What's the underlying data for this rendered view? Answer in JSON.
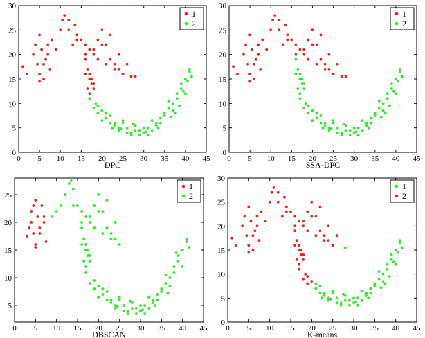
{
  "chart_data": [
    {
      "type": "scatter",
      "xlabel": "DPC",
      "xlim": [
        0,
        45
      ],
      "ylim": [
        0,
        30
      ],
      "xticks": [
        0,
        5,
        10,
        15,
        20,
        25,
        30,
        35,
        40,
        45
      ],
      "yticks": [
        0,
        5,
        10,
        15,
        20,
        25,
        30
      ],
      "legend": "top-right",
      "series": [
        {
          "name": "1",
          "color": "#e82020",
          "x": [
            1,
            2,
            3.5,
            4,
            4.5,
            5,
            5,
            5.5,
            6,
            6.5,
            7,
            7.5,
            5,
            6,
            7,
            8,
            9,
            10,
            10.5,
            11,
            12,
            13,
            13.5,
            14,
            15,
            16,
            17,
            18,
            19,
            20,
            21,
            22,
            23,
            24,
            25,
            26,
            27,
            28,
            12,
            14,
            16,
            18,
            20,
            22,
            24,
            19,
            21,
            23,
            25,
            16,
            16.5,
            17,
            17.5,
            18,
            16.5,
            17,
            17.5,
            18,
            16,
            17
          ],
          "y": [
            17.5,
            16,
            20,
            22,
            18,
            24,
            16,
            21,
            15,
            19,
            22,
            17,
            14.5,
            18,
            20,
            23,
            21,
            25,
            27,
            28,
            27,
            22,
            26,
            24,
            23,
            22,
            21,
            20,
            23,
            25,
            22,
            19,
            18,
            17,
            16,
            18,
            15.5,
            15.5,
            25,
            23,
            20,
            21,
            22,
            24,
            20,
            19,
            18,
            17,
            16,
            19,
            17,
            16,
            15,
            14,
            13,
            12,
            14,
            13,
            16,
            15
          ]
        },
        {
          "name": "2",
          "color": "#22ee22",
          "x": [
            17,
            18,
            19,
            20,
            21,
            22,
            23,
            24,
            25,
            26,
            27,
            28,
            29,
            30,
            31,
            32,
            33,
            34,
            35,
            36,
            37,
            38,
            39,
            40,
            41,
            20,
            22,
            24,
            26,
            28,
            30,
            32,
            34,
            36,
            38,
            40,
            19,
            21,
            23,
            25,
            27,
            29,
            31,
            33,
            35,
            37,
            39,
            41,
            18.5,
            24.5,
            30.5,
            36.5,
            41.5,
            22.5,
            27.5,
            33.5,
            38.5,
            40.5,
            39.5,
            37.5
          ],
          "y": [
            11,
            9,
            8,
            8.5,
            7,
            6,
            5.5,
            5,
            6,
            5,
            4,
            4.5,
            3.5,
            4,
            5,
            4.5,
            6,
            7,
            8,
            9,
            10,
            12,
            13,
            15,
            16.5,
            6.5,
            7.5,
            4.5,
            4,
            5.5,
            5,
            6.5,
            6,
            10.5,
            11,
            12,
            9.5,
            8,
            6,
            6.5,
            3.5,
            4.5,
            3.5,
            5.5,
            7.5,
            8.5,
            14,
            17,
            10,
            4.8,
            4.2,
            7.2,
            15.5,
            5,
            5.8,
            5,
            9.5,
            14.5,
            12.5,
            8
          ]
        }
      ]
    },
    {
      "type": "scatter",
      "xlabel": "SSA-DPC",
      "xlim": [
        0,
        45
      ],
      "ylim": [
        0,
        30
      ],
      "xticks": [
        0,
        5,
        10,
        15,
        20,
        25,
        30,
        35,
        40,
        45
      ],
      "yticks": [
        0,
        5,
        10,
        15,
        20,
        25,
        30
      ],
      "legend": "top-right",
      "series": [
        {
          "name": "1",
          "color": "#e82020",
          "x": [
            1,
            2,
            3.5,
            4,
            4.5,
            5,
            5,
            5.5,
            6,
            6.5,
            7,
            7.5,
            5,
            6,
            7,
            8,
            9,
            10,
            10.5,
            11,
            12,
            13,
            13.5,
            14,
            15,
            16,
            17,
            18,
            19,
            20,
            21,
            22,
            23,
            24,
            25,
            26,
            27,
            28,
            12,
            14,
            16,
            18,
            20,
            22,
            24,
            19,
            21,
            23,
            25
          ],
          "y": [
            17.5,
            16,
            20,
            22,
            18,
            24,
            16,
            21,
            15,
            19,
            22,
            17,
            14.5,
            18,
            20,
            23,
            21,
            25,
            27,
            28,
            27,
            22,
            26,
            24,
            23,
            22,
            21,
            20,
            23,
            25,
            22,
            19,
            18,
            17,
            16,
            18,
            15.5,
            15.5,
            25,
            23,
            20,
            21,
            22,
            24,
            20,
            19,
            18,
            17,
            16
          ]
        },
        {
          "name": "2",
          "color": "#22ee22",
          "x": [
            16,
            16.5,
            17,
            17.5,
            18,
            16.5,
            17,
            17.5,
            18,
            16,
            17,
            17,
            18,
            19,
            20,
            21,
            22,
            23,
            24,
            25,
            26,
            27,
            28,
            29,
            30,
            31,
            32,
            33,
            34,
            35,
            36,
            37,
            38,
            39,
            40,
            41,
            20,
            22,
            24,
            26,
            28,
            30,
            32,
            34,
            36,
            38,
            40,
            19,
            21,
            23,
            25,
            27,
            29,
            31,
            33,
            35,
            37,
            39,
            41,
            18.5,
            24.5,
            30.5,
            36.5,
            41.5,
            22.5,
            27.5,
            33.5,
            38.5,
            40.5,
            39.5,
            37.5
          ],
          "y": [
            19,
            17,
            16,
            15,
            14,
            13,
            12,
            14,
            13,
            16,
            15,
            11,
            9,
            8,
            8.5,
            7,
            6,
            5.5,
            5,
            6,
            5,
            4,
            4.5,
            3.5,
            4,
            5,
            4.5,
            6,
            7,
            8,
            9,
            10,
            12,
            13,
            15,
            16.5,
            6.5,
            7.5,
            4.5,
            4,
            5.5,
            5,
            6.5,
            6,
            10.5,
            11,
            12,
            9.5,
            8,
            6,
            6.5,
            3.5,
            4.5,
            3.5,
            5.5,
            7.5,
            8.5,
            14,
            17,
            10,
            4.8,
            4.2,
            7.2,
            15.5,
            5,
            5.8,
            5,
            9.5,
            14.5,
            12.5,
            8
          ]
        }
      ]
    },
    {
      "type": "scatter",
      "xlabel": "DBSCAN",
      "xlim": [
        0,
        45
      ],
      "ylim": [
        2,
        28
      ],
      "xticks": [
        0,
        5,
        10,
        15,
        20,
        25,
        30,
        35,
        40,
        45
      ],
      "yticks": [
        5,
        10,
        15,
        20,
        25
      ],
      "legend": "top-right",
      "series": [
        {
          "name": "1",
          "color": "#e82020",
          "x": [
            3,
            3.5,
            4,
            4,
            4.5,
            5,
            5,
            5.5,
            6,
            6.5,
            7,
            7.5,
            5,
            6,
            7,
            4.5
          ],
          "y": [
            17.5,
            19,
            20,
            22,
            18,
            24,
            16,
            21,
            19,
            23,
            20,
            16.5,
            15.5,
            18,
            21,
            23
          ]
        },
        {
          "name": "2",
          "color": "#22ee22",
          "x": [
            9,
            10,
            11,
            12,
            13,
            13.5,
            14,
            15,
            16,
            17,
            18,
            19,
            20,
            21,
            22,
            23,
            24,
            25,
            12,
            14,
            16,
            18,
            20,
            22,
            24,
            19,
            21,
            23,
            16,
            16.5,
            17,
            17.5,
            18,
            16.5,
            17,
            17.5,
            18,
            16,
            17,
            17,
            18,
            19,
            20,
            21,
            22,
            23,
            24,
            25,
            26,
            27,
            28,
            29,
            30,
            31,
            32,
            33,
            34,
            35,
            36,
            37,
            38,
            39,
            40,
            41,
            20,
            22,
            24,
            26,
            28,
            30,
            32,
            34,
            36,
            38,
            40,
            19,
            21,
            23,
            25,
            27,
            29,
            31,
            33,
            35,
            37,
            39,
            41,
            24.5,
            30.5,
            36.5,
            41.5,
            27.5,
            33.5,
            38.5
          ],
          "y": [
            21,
            22,
            23,
            25,
            27,
            27.5,
            26,
            23,
            22,
            21,
            20,
            23,
            25,
            22,
            19,
            18,
            17,
            16,
            25,
            23,
            20,
            21,
            22,
            24,
            20,
            19,
            18,
            17,
            19,
            17,
            16,
            15,
            14,
            13,
            12,
            14,
            13,
            16,
            15,
            11,
            9,
            8,
            8.5,
            7,
            6,
            5.5,
            5,
            6,
            5,
            4,
            4.5,
            3.5,
            4,
            5,
            4.5,
            6,
            7,
            8,
            9,
            10,
            12,
            13,
            15,
            16.5,
            6.5,
            7.5,
            4.5,
            4,
            5.5,
            5,
            6.5,
            6,
            10.5,
            11,
            12,
            9.5,
            8,
            6,
            6.5,
            3.5,
            4.5,
            3.5,
            5.5,
            7.5,
            8.5,
            14,
            17,
            4.8,
            4.2,
            7.2,
            15.5,
            5.8,
            5,
            14.5
          ]
        }
      ]
    },
    {
      "type": "scatter",
      "xlabel": "K-means",
      "xlim": [
        0,
        45
      ],
      "ylim": [
        0,
        30
      ],
      "xticks": [
        0,
        5,
        10,
        15,
        20,
        25,
        30,
        35,
        40,
        45
      ],
      "yticks": [
        0,
        5,
        10,
        15,
        20,
        25,
        30
      ],
      "legend": "top-right",
      "series": [
        {
          "name": "1",
          "color": "#22ee22",
          "x": [
            21,
            22,
            23,
            24,
            25,
            26,
            27,
            28,
            29,
            30,
            31,
            32,
            33,
            34,
            35,
            36,
            37,
            38,
            39,
            40,
            41,
            22,
            24,
            26,
            28,
            30,
            32,
            34,
            36,
            38,
            40,
            21,
            23,
            25,
            27,
            29,
            31,
            33,
            35,
            37,
            39,
            41,
            24.5,
            30.5,
            36.5,
            41.5,
            22.5,
            27.5,
            33.5,
            38.5,
            40.5,
            39.5,
            37.5,
            28
          ],
          "y": [
            7,
            6,
            5.5,
            5,
            6,
            5,
            4,
            4.5,
            3.5,
            4,
            5,
            4.5,
            6,
            7,
            8,
            9,
            10,
            12,
            13,
            15,
            16.5,
            7.5,
            4.5,
            4,
            5.5,
            5,
            6.5,
            6,
            10.5,
            11,
            12,
            8,
            6,
            6.5,
            3.5,
            4.5,
            3.5,
            5.5,
            7.5,
            8.5,
            14,
            17,
            4.8,
            4.2,
            7.2,
            15.5,
            5,
            5.8,
            5,
            9.5,
            14.5,
            12.5,
            8,
            15.5
          ]
        },
        {
          "name": "2",
          "color": "#e82020",
          "x": [
            1,
            2,
            3.5,
            4,
            4.5,
            5,
            5,
            5.5,
            6,
            6.5,
            7,
            7.5,
            5,
            6,
            7,
            8,
            9,
            10,
            10.5,
            11,
            12,
            13,
            13.5,
            14,
            15,
            16,
            17,
            18,
            19,
            20,
            21,
            22,
            23,
            24,
            25,
            26,
            12,
            14,
            16,
            18,
            20,
            22,
            24,
            19,
            21,
            23,
            25,
            16,
            16.5,
            17,
            17.5,
            18,
            16.5,
            17,
            17.5,
            18,
            16,
            17,
            17,
            18,
            19,
            20,
            19,
            18.5
          ],
          "y": [
            17.5,
            16,
            20,
            22,
            18,
            24,
            16,
            21,
            15,
            19,
            22,
            17,
            14.5,
            18,
            20,
            23,
            21,
            25,
            27,
            28,
            27,
            22,
            26,
            24,
            23,
            22,
            21,
            20,
            23,
            25,
            22,
            19,
            18,
            17,
            16,
            18,
            25,
            23,
            20,
            21,
            22,
            24,
            20,
            19,
            18,
            17,
            16,
            19,
            17,
            16,
            15,
            14,
            13,
            12,
            14,
            13,
            16,
            15,
            11,
            9,
            8,
            8.5,
            9.5,
            10
          ]
        }
      ]
    }
  ]
}
